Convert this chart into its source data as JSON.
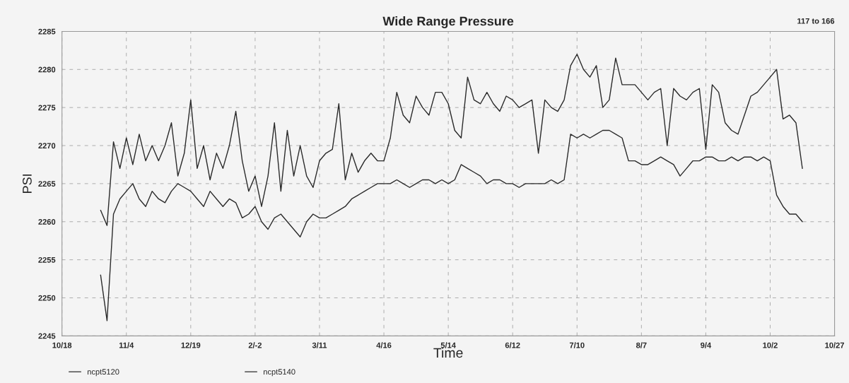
{
  "chart_data": {
    "type": "line",
    "title": "Wide Range Pressure",
    "xlabel": "Time",
    "ylabel": "PSI",
    "annotations": [
      "117 to 166"
    ],
    "categories": [
      "10/18",
      null,
      null,
      null,
      null,
      null,
      null,
      null,
      null,
      null,
      "11/4",
      null,
      null,
      null,
      null,
      null,
      null,
      null,
      null,
      null,
      "12/19",
      null,
      null,
      null,
      null,
      null,
      null,
      null,
      null,
      null,
      "2/-2",
      null,
      null,
      null,
      null,
      null,
      null,
      null,
      null,
      null,
      "3/11",
      null,
      null,
      null,
      null,
      null,
      null,
      null,
      null,
      null,
      "4/16",
      null,
      null,
      null,
      null,
      null,
      null,
      null,
      null,
      null,
      "5/14",
      null,
      null,
      null,
      null,
      null,
      null,
      null,
      null,
      null,
      "6/12",
      null,
      null,
      null,
      null,
      null,
      null,
      null,
      null,
      null,
      "7/10",
      null,
      null,
      null,
      null,
      null,
      null,
      null,
      null,
      null,
      "8/7",
      null,
      null,
      null,
      null,
      null,
      null,
      null,
      null,
      null,
      "9/4",
      null,
      null,
      null,
      null,
      null,
      null,
      null,
      null,
      null,
      "10/2",
      null,
      null,
      null,
      null,
      null,
      null,
      null,
      null,
      null,
      "10/27"
    ],
    "ylim": [
      2245,
      2285
    ],
    "yticks": [
      2245,
      2250,
      2255,
      2260,
      2265,
      2270,
      2275,
      2280,
      2285
    ],
    "grid": true,
    "legend": "bottom",
    "series": [
      {
        "name": "ncpt5120",
        "color": "#2a2a2a",
        "values": [
          null,
          null,
          null,
          null,
          null,
          null,
          2261.5,
          2259.5,
          2270.5,
          2267,
          2271,
          2267.5,
          2271.5,
          2268,
          2270,
          2268,
          2270,
          2273,
          2266,
          2269,
          2276,
          2267,
          2270,
          2265.5,
          2269,
          2267,
          2270,
          2274.5,
          2268,
          2264,
          2266,
          2262,
          2266,
          2273,
          2264,
          2272,
          2266,
          2270,
          2266,
          2264.5,
          2268,
          2269,
          2269.5,
          2275.5,
          2265.5,
          2269,
          2266.5,
          2268,
          2269,
          2268,
          2268,
          2271,
          2277,
          2274,
          2273,
          2276.5,
          2275,
          2274,
          2277,
          2277,
          2275.5,
          2272,
          2271,
          2279,
          2276,
          2275.5,
          2277,
          2275.5,
          2274.5,
          2276.5,
          2276,
          2275,
          2275.5,
          2276,
          2269,
          2276,
          2275,
          2274.5,
          2276,
          2280.5,
          2282,
          2280,
          2279,
          2280.5,
          2275,
          2276,
          2281.5,
          2278,
          2278,
          2278,
          2277,
          2276,
          2277,
          2277.5,
          2270,
          2277.5,
          2276.5,
          2276,
          2277,
          2277.5,
          2269.5,
          2278,
          2277,
          2273,
          2272,
          2271.5,
          2274,
          2276.5,
          2277,
          2278,
          2279,
          2280,
          2273.5,
          2274,
          2273,
          2267,
          null,
          null,
          null,
          null,
          null
        ]
      },
      {
        "name": "ncpt5140",
        "color": "#2a2a2a",
        "values": [
          null,
          null,
          null,
          null,
          null,
          null,
          2253,
          2247,
          2261,
          2263,
          2264,
          2265,
          2263,
          2262,
          2264,
          2263,
          2262.5,
          2264,
          2265,
          2264.5,
          2264,
          2263,
          2262,
          2264,
          2263,
          2262,
          2263,
          2262.5,
          2260.5,
          2261,
          2262,
          2260,
          2259,
          2260.5,
          2261,
          2260,
          2259,
          2258,
          2260,
          2261,
          2260.5,
          2260.5,
          2261,
          2261.5,
          2262,
          2263,
          2263.5,
          2264,
          2264.5,
          2265,
          2265,
          2265,
          2265.5,
          2265,
          2264.5,
          2265,
          2265.5,
          2265.5,
          2265,
          2265.5,
          2265,
          2265.5,
          2267.5,
          2267,
          2266.5,
          2266,
          2265,
          2265.5,
          2265.5,
          2265,
          2265,
          2264.5,
          2265,
          2265,
          2265,
          2265,
          2265.5,
          2265,
          2265.5,
          2271.5,
          2271,
          2271.5,
          2271,
          2271.5,
          2272,
          2272,
          2271.5,
          2271,
          2268,
          2268,
          2267.5,
          2267.5,
          2268,
          2268.5,
          2268,
          2267.5,
          2266,
          2267,
          2268,
          2268,
          2268.5,
          2268.5,
          2268,
          2268,
          2268.5,
          2268,
          2268.5,
          2268.5,
          2268,
          2268.5,
          2268,
          2263.5,
          2262,
          2261,
          2261,
          2260,
          null,
          null,
          null,
          null,
          null
        ]
      }
    ]
  }
}
